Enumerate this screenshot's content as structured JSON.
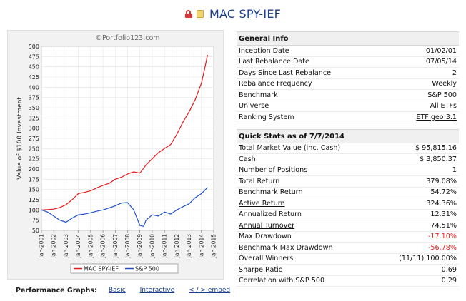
{
  "header": {
    "title": "MAC SPY-IEF",
    "icons": [
      "lock-icon",
      "note-icon"
    ]
  },
  "chart_data": {
    "type": "line",
    "watermark": "©Portfolio123.com",
    "ylabel": "Value of $100 Investment",
    "ylim": [
      50,
      500
    ],
    "yticks": [
      "500",
      "475",
      "450",
      "425",
      "400",
      "375",
      "350",
      "325",
      "300",
      "275",
      "250",
      "225",
      "200",
      "175",
      "150",
      "125",
      "100",
      "75",
      "50"
    ],
    "xticks": [
      "Jan-2001",
      "Jan-2002",
      "Jan-2003",
      "Jan-2004",
      "Jan-2005",
      "Jan-2006",
      "Jan-2007",
      "Jan-2008",
      "Jan-2009",
      "Jan-2010",
      "Jan-2011",
      "Jan-2012",
      "Jan-2013",
      "Jan-2014",
      "Jan-2015"
    ],
    "legend": [
      "MAC  SPY-IEF",
      "S&P 500"
    ],
    "series": [
      {
        "name": "MAC  SPY-IEF",
        "color": "#e31a1c",
        "x": [
          2001.0,
          2001.5,
          2002.0,
          2002.5,
          2003.0,
          2003.5,
          2004.0,
          2004.5,
          2005.0,
          2005.5,
          2006.0,
          2006.5,
          2007.0,
          2007.5,
          2008.0,
          2008.5,
          2009.0,
          2009.5,
          2010.0,
          2010.5,
          2011.0,
          2011.5,
          2012.0,
          2012.5,
          2013.0,
          2013.5,
          2014.0,
          2014.3,
          2014.5
        ],
        "y": [
          100,
          101,
          102,
          106,
          113,
          125,
          140,
          143,
          147,
          154,
          160,
          165,
          175,
          180,
          188,
          193,
          190,
          210,
          225,
          240,
          250,
          260,
          285,
          315,
          340,
          370,
          410,
          450,
          479
        ]
      },
      {
        "name": "S&P 500",
        "color": "#1f4fc8",
        "x": [
          2001.0,
          2001.5,
          2002.0,
          2002.5,
          2003.0,
          2003.5,
          2004.0,
          2004.5,
          2005.0,
          2005.5,
          2006.0,
          2006.5,
          2007.0,
          2007.5,
          2008.0,
          2008.5,
          2009.0,
          2009.3,
          2009.5,
          2010.0,
          2010.5,
          2011.0,
          2011.5,
          2012.0,
          2012.5,
          2013.0,
          2013.5,
          2014.0,
          2014.5
        ],
        "y": [
          100,
          95,
          85,
          75,
          70,
          80,
          88,
          90,
          93,
          97,
          100,
          105,
          110,
          117,
          118,
          100,
          62,
          60,
          75,
          88,
          85,
          95,
          90,
          100,
          108,
          115,
          130,
          140,
          155
        ]
      }
    ]
  },
  "perf": {
    "label": "Performance Graphs:",
    "links": [
      "Basic",
      "Interactive",
      "< / > embed"
    ]
  },
  "general_info": {
    "title": "General Info",
    "rows": [
      {
        "label": "Inception Date",
        "value": "01/02/01"
      },
      {
        "label": "Last Rebalance Date",
        "value": "07/05/14"
      },
      {
        "label": "Days Since Last Rebalance",
        "value": "2"
      },
      {
        "label": "Rebalance Frequency",
        "value": "Weekly"
      },
      {
        "label": "Benchmark",
        "value": "S&P 500"
      },
      {
        "label": "Universe",
        "value": "All ETFs"
      },
      {
        "label": "Ranking System",
        "value": "ETF geo 3.1"
      }
    ]
  },
  "quick_stats": {
    "title": "Quick Stats as of 7/7/2014",
    "rows": [
      {
        "label": "Total Market Value (inc. Cash)",
        "value": "$ 95,815.16"
      },
      {
        "label": "Cash",
        "value": "$ 3,850.37"
      },
      {
        "label": "Number of Positions",
        "value": "1"
      },
      {
        "label": "Total Return",
        "value": "379.08%"
      },
      {
        "label": "Benchmark Return",
        "value": "54.72%"
      },
      {
        "label": "Active Return",
        "value": "324.36%"
      },
      {
        "label": "Annualized Return",
        "value": "12.31%"
      },
      {
        "label": "Annual Turnover",
        "value": "74.51%"
      },
      {
        "label": "Max Drawdown",
        "value": "-17.10%"
      },
      {
        "label": "Benchmark Max Drawdown",
        "value": "-56.78%"
      },
      {
        "label": "Overall Winners",
        "value": "(11/11) 100.00%"
      },
      {
        "label": "Sharpe Ratio",
        "value": "0.69"
      },
      {
        "label": "Correlation with S&P 500",
        "value": "0.29"
      }
    ]
  }
}
